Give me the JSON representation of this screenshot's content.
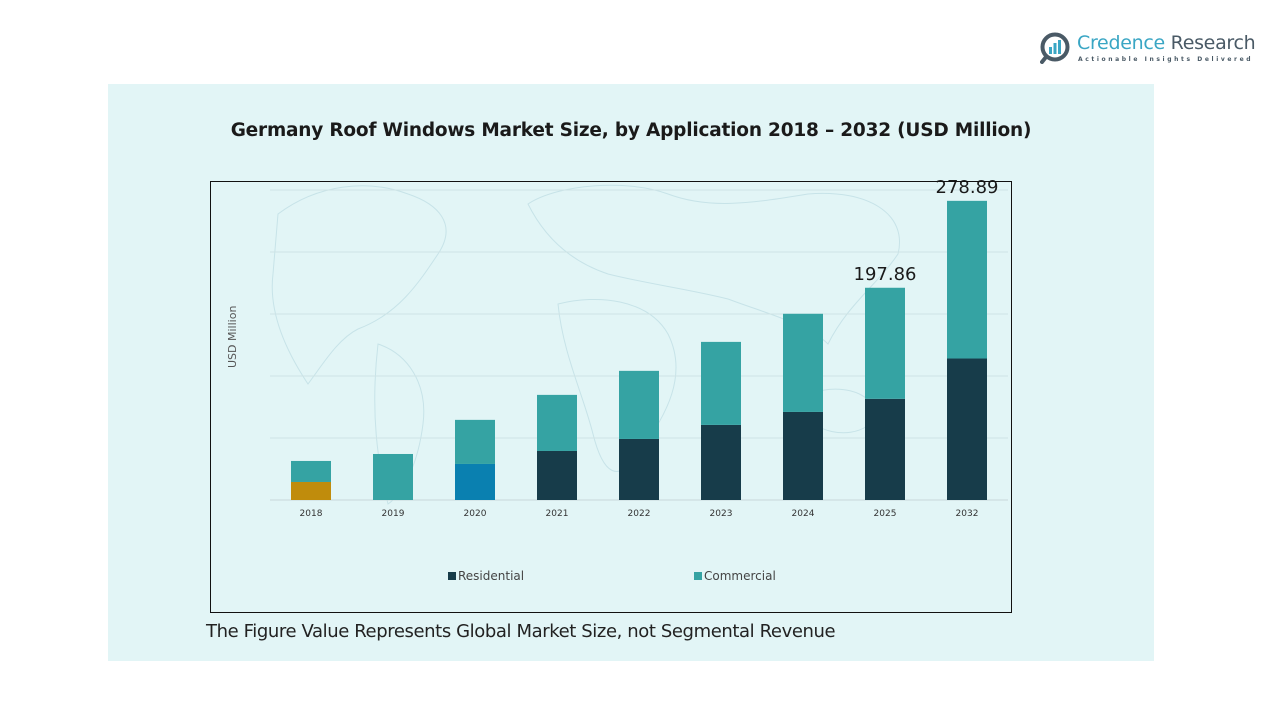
{
  "logo": {
    "name_part1": "Credence",
    "name_part2": "Research",
    "tagline": "Actionable Insights Delivered",
    "icon": "bar-chart-magnifier-icon"
  },
  "footnote": "The Figure Value Represents Global Market Size, not Segmental Revenue",
  "chart_data": {
    "type": "bar",
    "stacked": true,
    "title": "Germany Roof Windows Market Size, by Application 2018 – 2032 (USD Million)",
    "xlabel": "",
    "ylabel": "USD Million",
    "ylim": [
      0,
      289
    ],
    "grid": true,
    "legend_position": "bottom",
    "categories": [
      "2018",
      "2019",
      "2020",
      "2021",
      "2022",
      "2023",
      "2024",
      "2025",
      "2032"
    ],
    "series": [
      {
        "name": "Residential",
        "color": "#173c4a",
        "values": [
          16.8,
          0,
          33.6,
          45.7,
          56.9,
          70.0,
          82.1,
          94.3,
          131.9
        ],
        "bar_colors_override": {
          "2018": "#c08c0c",
          "2020": "#0a80b0"
        }
      },
      {
        "name": "Commercial",
        "color": "#35a3a3",
        "values": [
          19.6,
          42.9,
          41.1,
          52.3,
          63.5,
          77.4,
          91.5,
          103.56,
          146.99
        ]
      }
    ],
    "totals": [
      36.4,
      42.9,
      74.7,
      98.0,
      120.4,
      147.4,
      173.6,
      197.86,
      278.89
    ],
    "data_labels": [
      {
        "category": "2025",
        "text": "197.86"
      },
      {
        "category": "2032",
        "text": "278.89"
      }
    ]
  }
}
